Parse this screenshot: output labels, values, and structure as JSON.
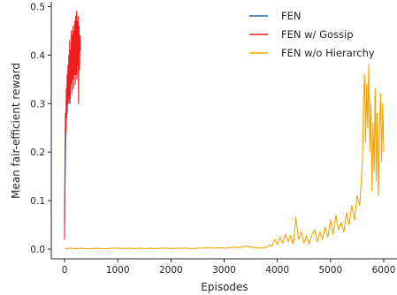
{
  "chart_data": {
    "type": "line",
    "title": "",
    "xlabel": "Episodes",
    "ylabel": "Mean fair-efficient reward",
    "xlim": [
      -250,
      6250
    ],
    "ylim": [
      -0.02,
      0.51
    ],
    "xticks": [
      0,
      1000,
      2000,
      3000,
      4000,
      5000,
      6000
    ],
    "xtick_labels": [
      "0",
      "1000",
      "2000",
      "3000",
      "4000",
      "5000",
      "6000"
    ],
    "yticks": [
      0.0,
      0.1,
      0.2,
      0.3,
      0.4,
      0.5
    ],
    "ytick_labels": [
      "0.0",
      "0.1",
      "0.2",
      "0.3",
      "0.4",
      "0.5"
    ],
    "grid": false,
    "legend_position": "top-right",
    "series": [
      {
        "name": "FEN",
        "color": "#1f5fa8",
        "x": [
          0,
          10,
          20,
          30,
          40,
          50,
          60,
          70,
          80,
          90,
          100,
          110,
          120,
          130,
          140,
          150,
          160,
          170,
          180,
          190,
          200,
          210,
          220,
          230,
          240,
          250,
          260,
          270,
          280,
          290,
          300
        ],
        "y": [
          0.05,
          0.14,
          0.22,
          0.26,
          0.3,
          0.28,
          0.32,
          0.35,
          0.3,
          0.37,
          0.33,
          0.38,
          0.36,
          0.4,
          0.35,
          0.41,
          0.37,
          0.42,
          0.39,
          0.43,
          0.4,
          0.44,
          0.41,
          0.45,
          0.42,
          0.44,
          0.41,
          0.43,
          0.4,
          0.42,
          0.41
        ]
      },
      {
        "name": "FEN w/ Gossip",
        "color": "#ee1c1c",
        "x": [
          0,
          8,
          16,
          24,
          32,
          40,
          48,
          56,
          64,
          72,
          80,
          88,
          96,
          104,
          112,
          120,
          128,
          136,
          144,
          152,
          160,
          168,
          176,
          184,
          192,
          200,
          208,
          216,
          224,
          232,
          240,
          248,
          256,
          264,
          272,
          280,
          288,
          296
        ],
        "y": [
          0.02,
          0.18,
          0.28,
          0.24,
          0.33,
          0.27,
          0.36,
          0.3,
          0.38,
          0.32,
          0.4,
          0.31,
          0.43,
          0.3,
          0.41,
          0.34,
          0.45,
          0.32,
          0.44,
          0.35,
          0.46,
          0.33,
          0.45,
          0.36,
          0.47,
          0.34,
          0.48,
          0.36,
          0.49,
          0.35,
          0.47,
          0.38,
          0.48,
          0.3,
          0.46,
          0.37,
          0.44,
          0.42
        ]
      },
      {
        "name": "FEN w/o Hierarchy",
        "color": "#f5a500",
        "x": [
          0,
          100,
          200,
          300,
          400,
          500,
          600,
          700,
          800,
          900,
          1000,
          1100,
          1200,
          1300,
          1400,
          1500,
          1600,
          1700,
          1800,
          1900,
          2000,
          2100,
          2200,
          2300,
          2400,
          2500,
          2600,
          2700,
          2800,
          2900,
          3000,
          3100,
          3200,
          3300,
          3400,
          3500,
          3600,
          3700,
          3800,
          3850,
          3900,
          3950,
          4000,
          4050,
          4100,
          4150,
          4200,
          4250,
          4300,
          4350,
          4400,
          4450,
          4500,
          4550,
          4600,
          4650,
          4700,
          4750,
          4800,
          4850,
          4900,
          4950,
          5000,
          5050,
          5100,
          5150,
          5200,
          5250,
          5300,
          5350,
          5400,
          5450,
          5500,
          5550,
          5600,
          5620,
          5640,
          5660,
          5680,
          5700,
          5720,
          5740,
          5760,
          5780,
          5800,
          5820,
          5840,
          5860,
          5880,
          5900,
          5920,
          5940,
          5960,
          5980,
          6000
        ],
        "y": [
          0.0,
          0.002,
          0.001,
          0.002,
          0.001,
          0.001,
          0.002,
          0.001,
          0.001,
          0.002,
          0.002,
          0.001,
          0.002,
          0.001,
          0.002,
          0.001,
          0.002,
          0.001,
          0.002,
          0.002,
          0.001,
          0.002,
          0.002,
          0.002,
          0.001,
          0.002,
          0.002,
          0.003,
          0.002,
          0.003,
          0.002,
          0.003,
          0.004,
          0.003,
          0.006,
          0.004,
          0.003,
          0.002,
          0.004,
          0.008,
          0.006,
          0.02,
          0.01,
          0.025,
          0.012,
          0.03,
          0.015,
          0.028,
          0.01,
          0.065,
          0.02,
          0.035,
          0.012,
          0.028,
          0.01,
          0.03,
          0.04,
          0.015,
          0.035,
          0.02,
          0.045,
          0.025,
          0.06,
          0.03,
          0.07,
          0.04,
          0.055,
          0.035,
          0.075,
          0.05,
          0.09,
          0.06,
          0.11,
          0.09,
          0.18,
          0.3,
          0.36,
          0.22,
          0.34,
          0.25,
          0.38,
          0.2,
          0.3,
          0.12,
          0.26,
          0.16,
          0.33,
          0.14,
          0.28,
          0.11,
          0.24,
          0.32,
          0.18,
          0.3,
          0.2
        ]
      }
    ]
  }
}
